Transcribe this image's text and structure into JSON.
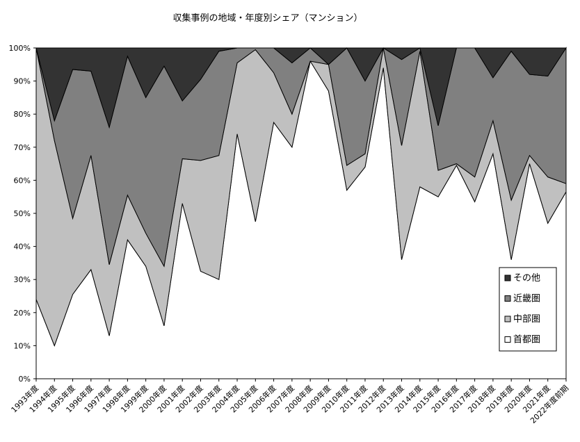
{
  "chart_data": {
    "type": "stacked_area_100",
    "title": "収集事例の地域・年度別シェア（マンション）",
    "categories": [
      "1993年度",
      "1994年度",
      "1995年度",
      "1996年度",
      "1997年度",
      "1998年度",
      "1999年度",
      "2000年度",
      "2001年度",
      "2002年度",
      "2003年度",
      "2004年度",
      "2005年度",
      "2006年度",
      "2007年度",
      "2008年度",
      "2009年度",
      "2010年度",
      "2011年度",
      "2012年度",
      "2013年度",
      "2014年度",
      "2015年度",
      "2016年度",
      "2017年度",
      "2018年度",
      "2019年度",
      "2020年度",
      "2021年度",
      "2022年度前期"
    ],
    "series": [
      {
        "name": "首都圏",
        "color": "#ffffff",
        "values": [
          24,
          10,
          25.5,
          33,
          13,
          42,
          34,
          16,
          53,
          32.5,
          30,
          74,
          47.5,
          77.5,
          70,
          96,
          87,
          57,
          64,
          94,
          36,
          58,
          55,
          64.5,
          53.5,
          68,
          36,
          65,
          47,
          56.5
        ]
      },
      {
        "name": "中部圏",
        "color": "#c0c0c0",
        "values": [
          76,
          62,
          23,
          34.5,
          21.5,
          13.5,
          10,
          18,
          13.5,
          33.5,
          37.5,
          21.5,
          52,
          15,
          10,
          0,
          8,
          7.5,
          4,
          6,
          34.5,
          41,
          8,
          0.5,
          7.5,
          10,
          18,
          2.5,
          14,
          2.5
        ]
      },
      {
        "name": "近畿圏",
        "color": "#808080",
        "values": [
          0,
          6,
          45,
          25.5,
          41.5,
          42,
          41,
          60.5,
          17.5,
          24.5,
          31.5,
          4.5,
          0.5,
          7.5,
          15.5,
          4,
          0,
          35.5,
          22,
          0,
          26,
          1,
          13.5,
          35,
          39,
          13,
          45,
          24.5,
          30.5,
          41
        ]
      },
      {
        "name": "その他",
        "color": "#333333",
        "values": [
          0,
          22,
          6.5,
          7,
          24,
          2.5,
          15,
          5.5,
          16,
          9.5,
          1,
          0,
          0,
          0,
          4.5,
          0,
          5,
          0,
          10,
          0,
          3.5,
          0,
          23.5,
          0,
          0,
          9,
          1,
          8,
          8.5,
          0
        ]
      }
    ],
    "ylim": [
      0,
      100
    ],
    "yticks": [
      {
        "value": 0,
        "label": "0%"
      },
      {
        "value": 10,
        "label": "10%"
      },
      {
        "value": 20,
        "label": "20%"
      },
      {
        "value": 30,
        "label": "30%"
      },
      {
        "value": 40,
        "label": "40%"
      },
      {
        "value": 50,
        "label": "50%"
      },
      {
        "value": 60,
        "label": "60%"
      },
      {
        "value": 70,
        "label": "70%"
      },
      {
        "value": 80,
        "label": "80%"
      },
      {
        "value": 90,
        "label": "90%"
      },
      {
        "value": 100,
        "label": "100%"
      }
    ],
    "legend": "right"
  }
}
